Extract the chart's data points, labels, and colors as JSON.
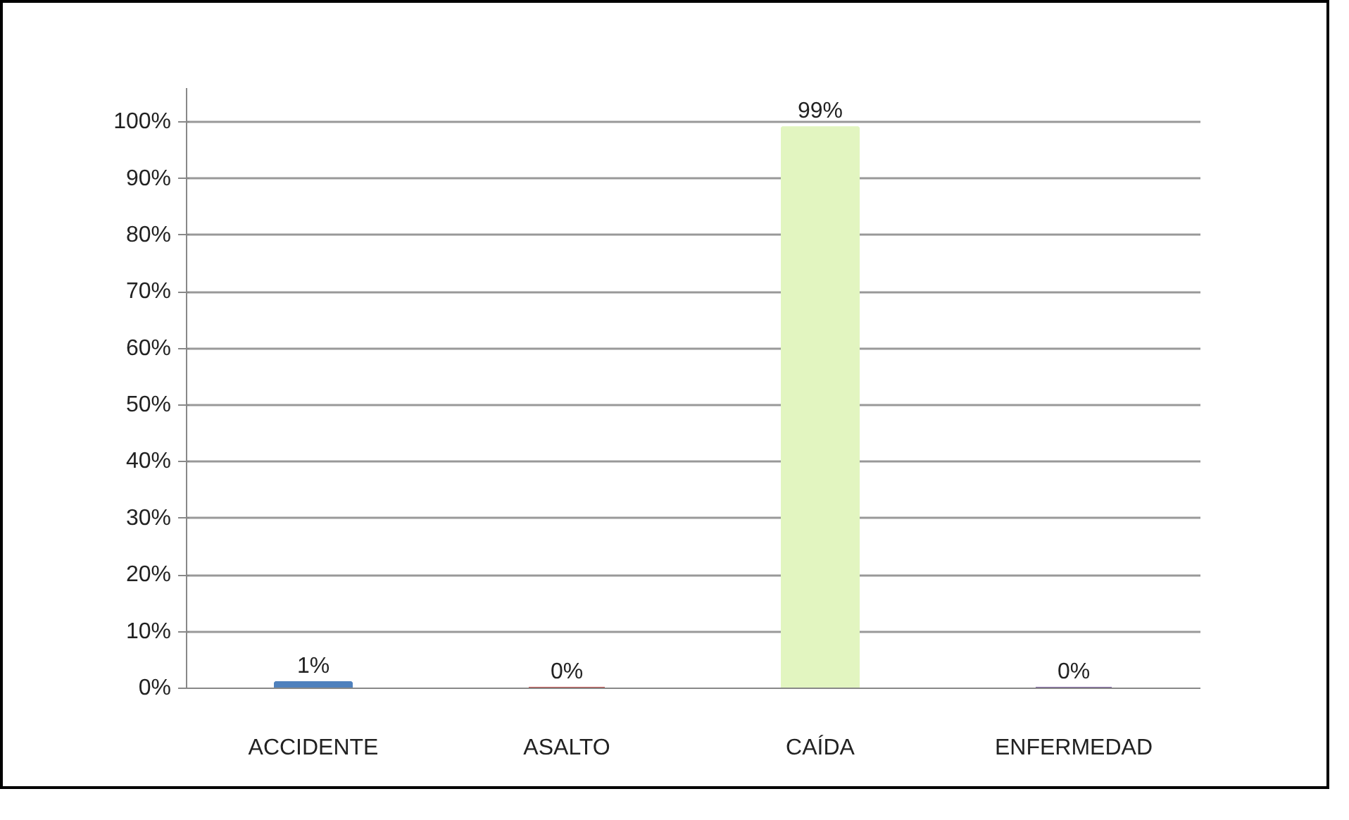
{
  "chart_data": {
    "type": "bar",
    "categories": [
      "ACCIDENTE",
      "ASALTO",
      "CAÍDA",
      "ENFERMEDAD"
    ],
    "values": [
      1,
      0,
      99,
      0
    ],
    "colors": [
      "#4f81bd",
      "#c0504d",
      "#e2f5c0",
      "#8064a2"
    ],
    "value_labels": [
      "1%",
      "0%",
      "99%",
      "0%"
    ],
    "ylim": [
      0,
      100
    ],
    "yticks": [
      {
        "value": 0,
        "label": "0%"
      },
      {
        "value": 10,
        "label": "10%"
      },
      {
        "value": 20,
        "label": "20%"
      },
      {
        "value": 30,
        "label": "30%"
      },
      {
        "value": 40,
        "label": "40%"
      },
      {
        "value": 50,
        "label": "50%"
      },
      {
        "value": 60,
        "label": "60%"
      },
      {
        "value": 70,
        "label": "70%"
      },
      {
        "value": 80,
        "label": "80%"
      },
      {
        "value": 90,
        "label": "90%"
      },
      {
        "value": 100,
        "label": "100%"
      }
    ],
    "grid": "y"
  }
}
